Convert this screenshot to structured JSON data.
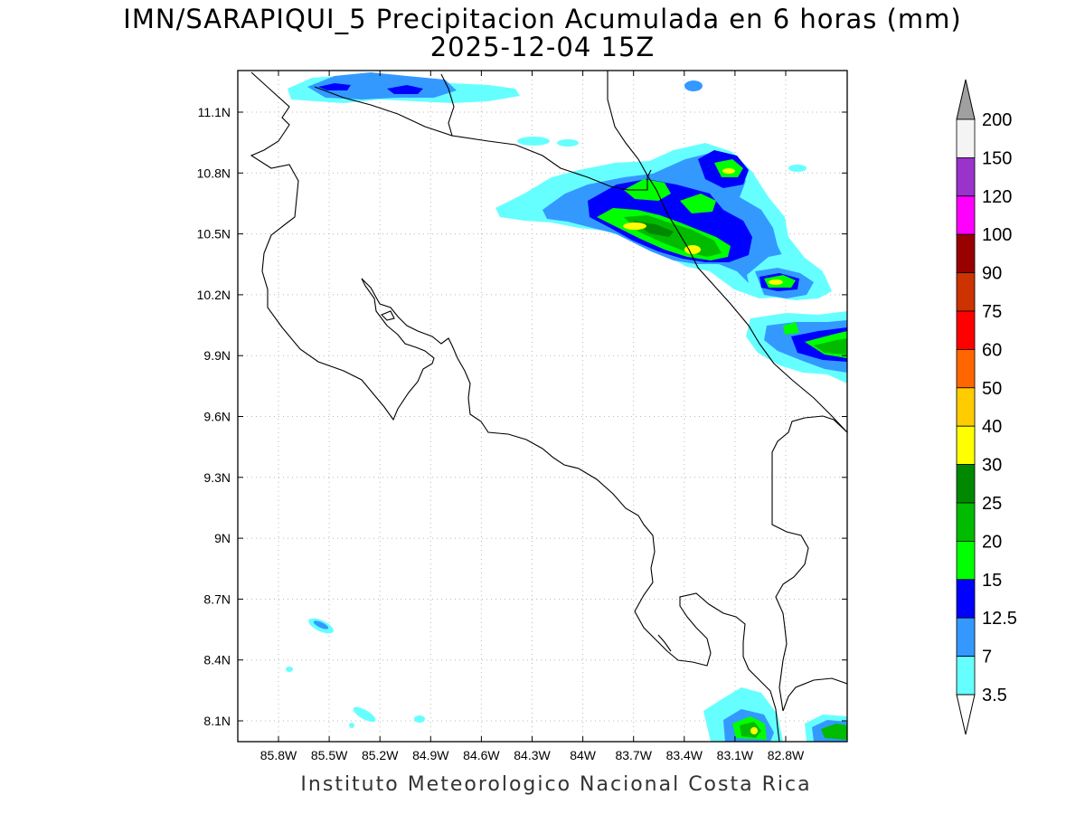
{
  "header": {
    "title_line1": "IMN/SARAPIQUI_5 Precipitacion Acumulada en 6 horas (mm)",
    "title_line2": "2025-12-04 15Z"
  },
  "axes": {
    "lon_ticks": [
      "85.8W",
      "85.5W",
      "85.2W",
      "84.9W",
      "84.6W",
      "84.3W",
      "84W",
      "83.7W",
      "83.4W",
      "83.1W",
      "82.8W"
    ],
    "lat_ticks": [
      "11.1N",
      "10.8N",
      "10.5N",
      "10.2N",
      "9.9N",
      "9.6N",
      "9.3N",
      "9N",
      "8.7N",
      "8.4N",
      "8.1N"
    ]
  },
  "colorbar": {
    "labels": [
      "200",
      "150",
      "120",
      "100",
      "90",
      "75",
      "60",
      "50",
      "40",
      "30",
      "25",
      "20",
      "15",
      "12.5",
      "7",
      "3.5"
    ],
    "colors": [
      "#f4f4f4",
      "#9933cc",
      "#ff00ff",
      "#990000",
      "#cc3300",
      "#ff0000",
      "#ff6600",
      "#ffcc00",
      "#ffff00",
      "#008800",
      "#00bb00",
      "#00ff00",
      "#0000ff",
      "#3399ff",
      "#66ffff"
    ],
    "over_color": "#a0a0a0",
    "under_color": "#ffffff"
  },
  "footer": {
    "credit": "Instituto Meteorologico Nacional Costa Rica"
  }
}
